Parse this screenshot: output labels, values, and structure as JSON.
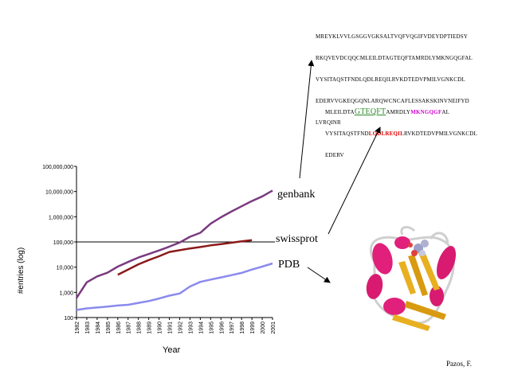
{
  "chart_data": {
    "type": "line",
    "xlabel": "Year",
    "ylabel": "#entries (log)",
    "x_ticks": [
      "1982",
      "1983",
      "1984",
      "1985",
      "1986",
      "1987",
      "1988",
      "1989",
      "1990",
      "1991",
      "1992",
      "1993",
      "1994",
      "1995",
      "1996",
      "1997",
      "1998",
      "1999",
      "2000",
      "2001"
    ],
    "y_ticks": [
      {
        "value": 100,
        "label": "100"
      },
      {
        "value": 1000,
        "label": "1,000"
      },
      {
        "value": 10000,
        "label": "10,000"
      },
      {
        "value": 100000,
        "label": "100,000"
      },
      {
        "value": 1000000,
        "label": "1,000,000"
      },
      {
        "value": 10000000,
        "label": "10,000,000"
      },
      {
        "value": 100000000,
        "label": "100,000,000"
      }
    ],
    "y_scale": "log",
    "ylim": [
      100,
      100000000
    ],
    "reference_line": 100000,
    "series": [
      {
        "name": "genbank",
        "color": "#7a3a80",
        "points": [
          [
            1982,
            600
          ],
          [
            1983,
            2500
          ],
          [
            1984,
            4300
          ],
          [
            1985,
            6000
          ],
          [
            1986,
            10500
          ],
          [
            1987,
            16000
          ],
          [
            1988,
            24000
          ],
          [
            1989,
            33000
          ],
          [
            1990,
            46000
          ],
          [
            1991,
            65000
          ],
          [
            1992,
            95000
          ],
          [
            1993,
            160000
          ],
          [
            1994,
            230000
          ],
          [
            1995,
            530000
          ],
          [
            1996,
            950000
          ],
          [
            1997,
            1600000
          ],
          [
            1998,
            2600000
          ],
          [
            1999,
            4200000
          ],
          [
            2000,
            6400000
          ],
          [
            2001,
            11000000
          ]
        ]
      },
      {
        "name": "swissprot",
        "color": "#8b1a1a",
        "points": [
          [
            1986,
            5000
          ],
          [
            1987,
            8000
          ],
          [
            1988,
            13000
          ],
          [
            1989,
            19000
          ],
          [
            1990,
            27000
          ],
          [
            1991,
            40000
          ],
          [
            1992,
            47000
          ],
          [
            1993,
            55000
          ],
          [
            1994,
            63000
          ],
          [
            1995,
            73000
          ],
          [
            1996,
            82000
          ],
          [
            1997,
            93000
          ],
          [
            1998,
            105000
          ],
          [
            1999,
            118000
          ]
        ]
      },
      {
        "name": "PDB",
        "color": "#8a8aee",
        "points": [
          [
            1982,
            200
          ],
          [
            1983,
            230
          ],
          [
            1984,
            250
          ],
          [
            1985,
            270
          ],
          [
            1986,
            300
          ],
          [
            1987,
            320
          ],
          [
            1988,
            380
          ],
          [
            1989,
            450
          ],
          [
            1990,
            570
          ],
          [
            1991,
            740
          ],
          [
            1992,
            900
          ],
          [
            1993,
            1700
          ],
          [
            1994,
            2600
          ],
          [
            1995,
            3200
          ],
          [
            1996,
            3900
          ],
          [
            1997,
            4800
          ],
          [
            1998,
            5900
          ],
          [
            1999,
            8000
          ],
          [
            2000,
            10500
          ],
          [
            2001,
            14000
          ]
        ]
      }
    ]
  },
  "sequences": {
    "full": [
      "MREYKLVVLGSGGVGKSALTVQFVQGIFVDEYDPTIEDSY",
      "RKQVEVDCQQCMLEILDTAGTEQFTAMRDLYMKNGQGFAL",
      "VYSITAQSTFNDLQDLREQILRVKDTEDVPMILVGNKCDL",
      "EDERVVGKEQGQNLARQWCNCAFLESSAKSKINVNEIFYD",
      "LVRQINR"
    ],
    "partial": {
      "line1": {
        "pre": "MLEILDTA",
        "green": "GTEQFT",
        "mid": "AMRDLY",
        "magenta": "MKNGQGF",
        "post": "AL"
      },
      "line2": {
        "pre": "VYSITAQSTFND",
        "red": "LQDLREQIL",
        "post": "RVKDTEDVPMILVGNKCDL"
      },
      "line3": "EDERV"
    }
  },
  "credit": "Pazos, F."
}
